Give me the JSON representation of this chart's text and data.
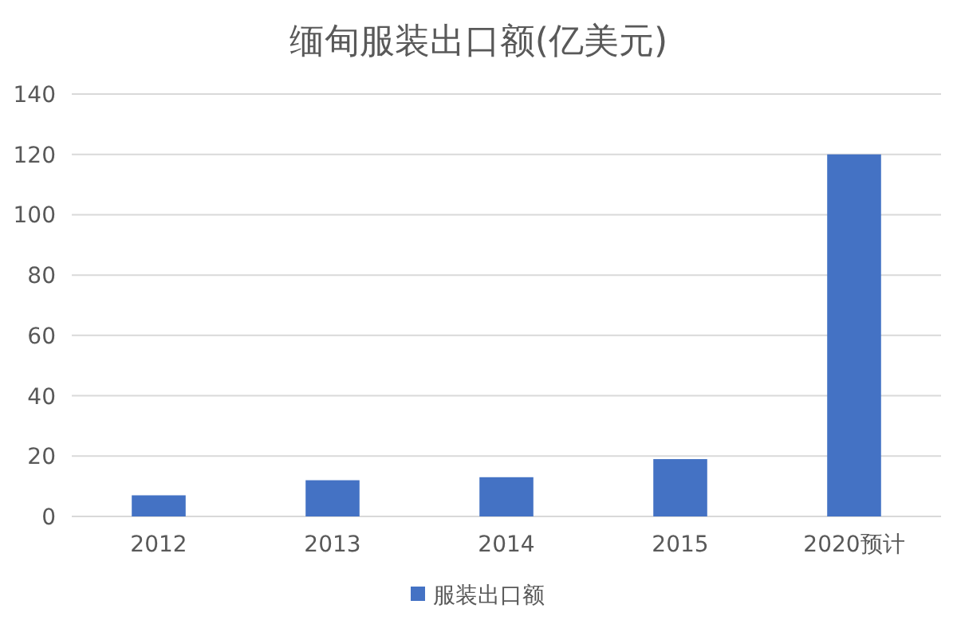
{
  "chart_data": {
    "type": "bar",
    "title": "缅甸服装出口额(亿美元)",
    "categories": [
      "2012",
      "2013",
      "2014",
      "2015",
      "2020预计"
    ],
    "series": [
      {
        "name": "服装出口额",
        "color": "#4472c4",
        "values": [
          7,
          12,
          13,
          19,
          120
        ]
      }
    ],
    "ylim": [
      0,
      140
    ],
    "yticks": [
      0,
      20,
      40,
      60,
      80,
      100,
      120,
      140
    ],
    "grid": "y",
    "legend": "bottom"
  }
}
